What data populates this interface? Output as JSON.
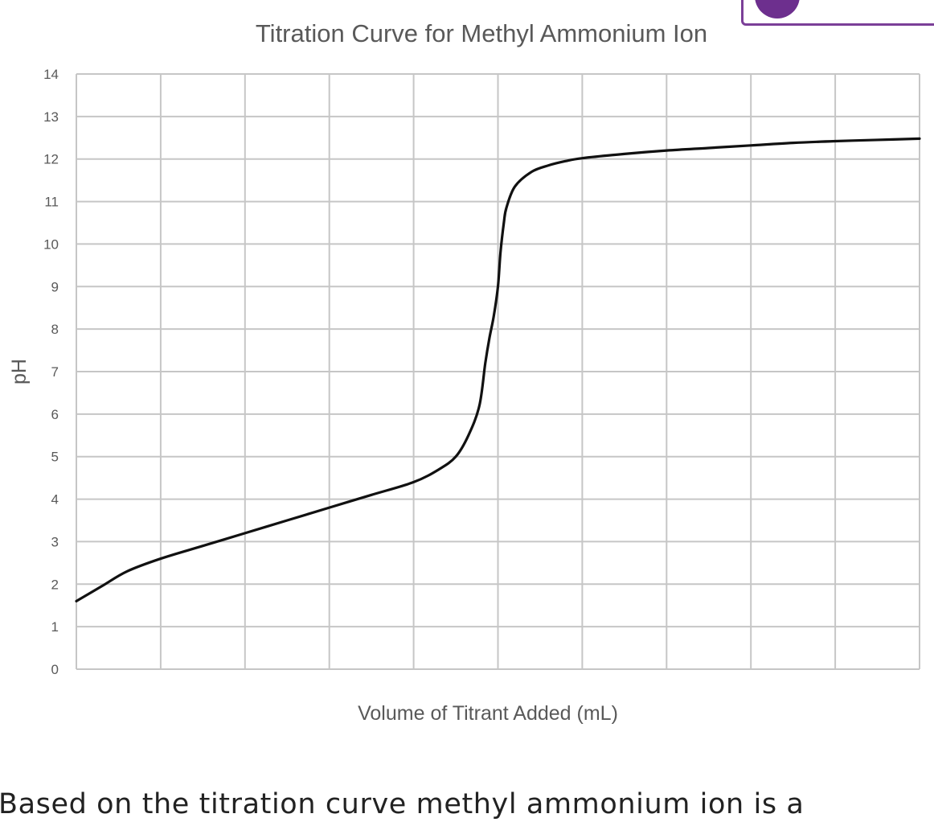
{
  "chart_data": {
    "type": "line",
    "title": "Titration Curve for Methyl Ammonium Ion",
    "xlabel": "Volume of Titrant Added (mL)",
    "ylabel": "pH",
    "ylim": [
      0,
      14
    ],
    "yticks": [
      "0",
      "1",
      "2",
      "3",
      "4",
      "5",
      "6",
      "7",
      "8",
      "9",
      "10",
      "11",
      "12",
      "13",
      "14"
    ],
    "xgrid_divisions": 10,
    "xticks_labeled": false,
    "grid": true,
    "series": [
      {
        "name": "pH",
        "x": [
          0,
          0.3,
          0.6,
          1.0,
          1.5,
          2.0,
          2.5,
          3.0,
          3.5,
          4.0,
          4.3,
          4.5,
          4.65,
          4.78,
          4.85,
          4.9,
          4.95,
          5.0,
          5.03,
          5.07,
          5.1,
          5.2,
          5.4,
          5.6,
          5.8,
          6.0,
          6.5,
          7.0,
          7.5,
          8.0,
          8.5,
          9.0,
          9.5,
          10.0
        ],
        "y": [
          1.6,
          1.95,
          2.3,
          2.6,
          2.9,
          3.2,
          3.5,
          3.8,
          4.1,
          4.4,
          4.7,
          5.0,
          5.5,
          6.2,
          7.2,
          7.8,
          8.3,
          9.0,
          9.8,
          10.5,
          10.85,
          11.35,
          11.7,
          11.85,
          11.95,
          12.02,
          12.12,
          12.2,
          12.26,
          12.32,
          12.38,
          12.42,
          12.45,
          12.48
        ]
      }
    ]
  },
  "question": {
    "text": "Based on the titration curve methyl ammonium ion is a"
  }
}
